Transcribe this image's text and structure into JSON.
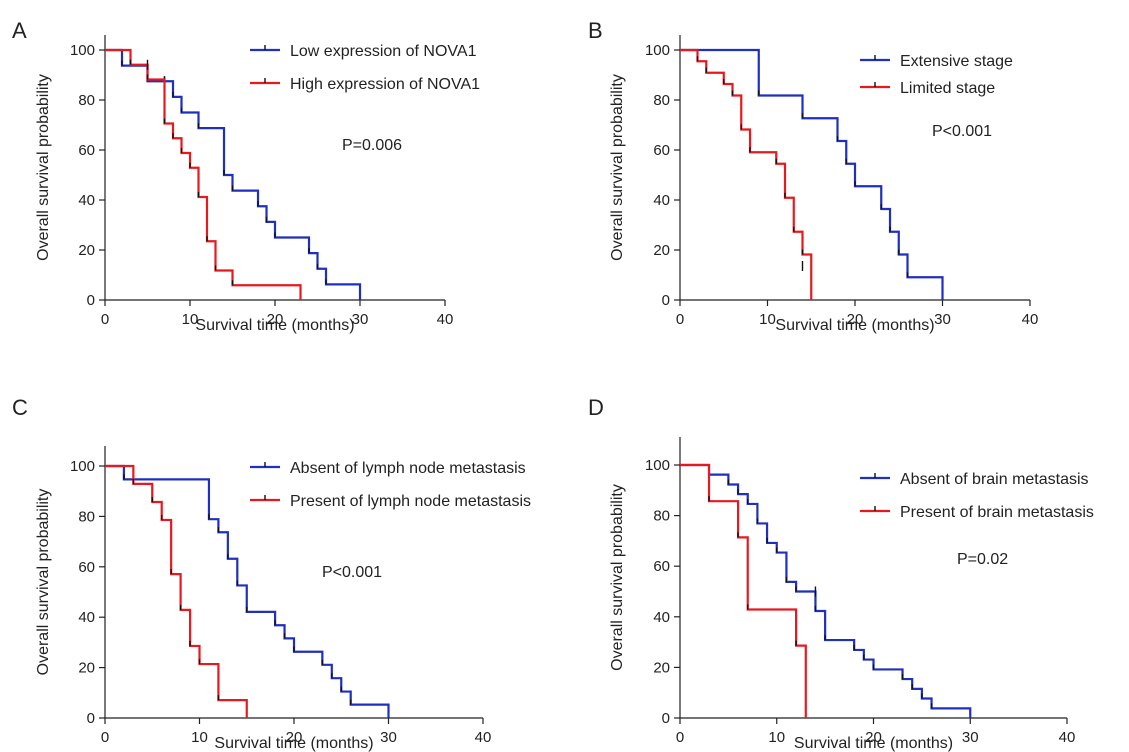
{
  "chart_data": [
    {
      "panel_label": "A",
      "type": "line",
      "step": true,
      "xlabel": "Survival time (months)",
      "ylabel": "Overall survival probability",
      "xlim": [
        0,
        40
      ],
      "ylim": [
        0,
        100
      ],
      "xticks": [
        0,
        10,
        20,
        30,
        40
      ],
      "yticks": [
        0,
        20,
        40,
        60,
        80,
        100
      ],
      "grid": false,
      "legend_position": "top-right",
      "annotation": "P=0.006",
      "series": [
        {
          "name": "Low expression of NOVA1",
          "color": "#1f2fbf",
          "x": [
            0,
            2,
            5,
            7,
            8,
            9,
            11,
            14,
            15,
            18,
            19,
            20,
            24,
            25,
            26,
            30
          ],
          "y": [
            100,
            93.75,
            87.5,
            87.5,
            81.25,
            75,
            68.75,
            50,
            43.75,
            37.5,
            31.25,
            25,
            18.75,
            12.5,
            6.25,
            0
          ],
          "censored": [
            {
              "x": 7,
              "y": 87.5
            }
          ]
        },
        {
          "name": "High expression of NOVA1",
          "color": "#e8191e",
          "x": [
            0,
            3,
            5,
            7,
            8,
            9,
            10,
            11,
            12,
            13,
            15,
            23
          ],
          "y": [
            100,
            94.1,
            88.2,
            70.6,
            64.7,
            58.8,
            52.9,
            41.2,
            23.5,
            11.8,
            5.9,
            0
          ],
          "censored": [
            {
              "x": 5,
              "y": 94.1
            }
          ]
        }
      ]
    },
    {
      "panel_label": "B",
      "type": "line",
      "step": true,
      "xlabel": "Survival time (months)",
      "ylabel": "Overall survival probability",
      "xlim": [
        0,
        40
      ],
      "ylim": [
        0,
        100
      ],
      "xticks": [
        0,
        10,
        20,
        30,
        40
      ],
      "yticks": [
        0,
        20,
        40,
        60,
        80,
        100
      ],
      "grid": false,
      "legend_position": "top-right",
      "annotation": "P<0.001",
      "series": [
        {
          "name": "Extensive stage",
          "color": "#1f2fbf",
          "x": [
            0,
            9,
            14,
            18,
            19,
            20,
            23,
            24,
            25,
            26,
            30
          ],
          "y": [
            100,
            81.8,
            72.7,
            63.6,
            54.5,
            45.5,
            36.4,
            27.3,
            18.2,
            9.1,
            0
          ],
          "censored": []
        },
        {
          "name": "Limited stage",
          "color": "#e8191e",
          "x": [
            0,
            2,
            3,
            5,
            6,
            7,
            8,
            11,
            12,
            13,
            14,
            15
          ],
          "y": [
            100,
            95.5,
            90.9,
            86.4,
            81.8,
            68.2,
            59.1,
            54.5,
            40.9,
            27.3,
            18.2,
            0
          ],
          "censored": [
            {
              "x": 14,
              "y": 13.6
            }
          ]
        }
      ]
    },
    {
      "panel_label": "C",
      "type": "line",
      "step": true,
      "xlabel": "Survival time (months)",
      "ylabel": "Overall survival probability",
      "xlim": [
        0,
        40
      ],
      "ylim": [
        0,
        100
      ],
      "xticks": [
        0,
        10,
        20,
        30,
        40
      ],
      "yticks": [
        0,
        20,
        40,
        60,
        80,
        100
      ],
      "grid": false,
      "legend_position": "top-right",
      "annotation": "P<0.001",
      "series": [
        {
          "name": "Absent of lymph node metastasis",
          "color": "#1f2fbf",
          "x": [
            0,
            2,
            11,
            12,
            13,
            14,
            15,
            18,
            19,
            20,
            23,
            24,
            25,
            26,
            30
          ],
          "y": [
            100,
            94.7,
            78.9,
            73.7,
            63.2,
            52.6,
            42.1,
            36.8,
            31.6,
            26.3,
            21.1,
            15.8,
            10.5,
            5.3,
            0
          ],
          "censored": []
        },
        {
          "name": "Present of lymph node metastasis",
          "color": "#e8191e",
          "x": [
            0,
            3,
            5,
            6,
            7,
            8,
            9,
            10,
            12,
            15
          ],
          "y": [
            100,
            92.9,
            85.7,
            78.6,
            57.1,
            42.9,
            28.6,
            21.4,
            7.1,
            0
          ],
          "censored": []
        }
      ]
    },
    {
      "panel_label": "D",
      "type": "line",
      "step": true,
      "xlabel": "Survival time (months)",
      "ylabel": "Overall survival probability",
      "xlim": [
        0,
        40
      ],
      "ylim": [
        0,
        100
      ],
      "xticks": [
        0,
        10,
        20,
        30,
        40
      ],
      "yticks": [
        0,
        20,
        40,
        60,
        80,
        100
      ],
      "grid": false,
      "legend_position": "top-right",
      "annotation": "P=0.02",
      "series": [
        {
          "name": "Absent of brain metastasis",
          "color": "#1f2fbf",
          "x": [
            0,
            3,
            5,
            6,
            7,
            8,
            9,
            10,
            11,
            12,
            14,
            15,
            18,
            19,
            20,
            23,
            24,
            25,
            26,
            30
          ],
          "y": [
            100,
            96.2,
            92.3,
            88.5,
            84.6,
            76.9,
            69.2,
            65.4,
            53.8,
            50,
            42.3,
            30.8,
            26.9,
            23.1,
            19.2,
            15.4,
            11.5,
            7.7,
            3.8,
            0
          ],
          "censored": [
            {
              "x": 14,
              "y": 50
            }
          ]
        },
        {
          "name": "Present of brain metastasis",
          "color": "#e8191e",
          "x": [
            0,
            3,
            6,
            7,
            12,
            13
          ],
          "y": [
            100,
            85.7,
            71.4,
            42.9,
            28.6,
            0
          ],
          "censored": []
        }
      ]
    }
  ]
}
